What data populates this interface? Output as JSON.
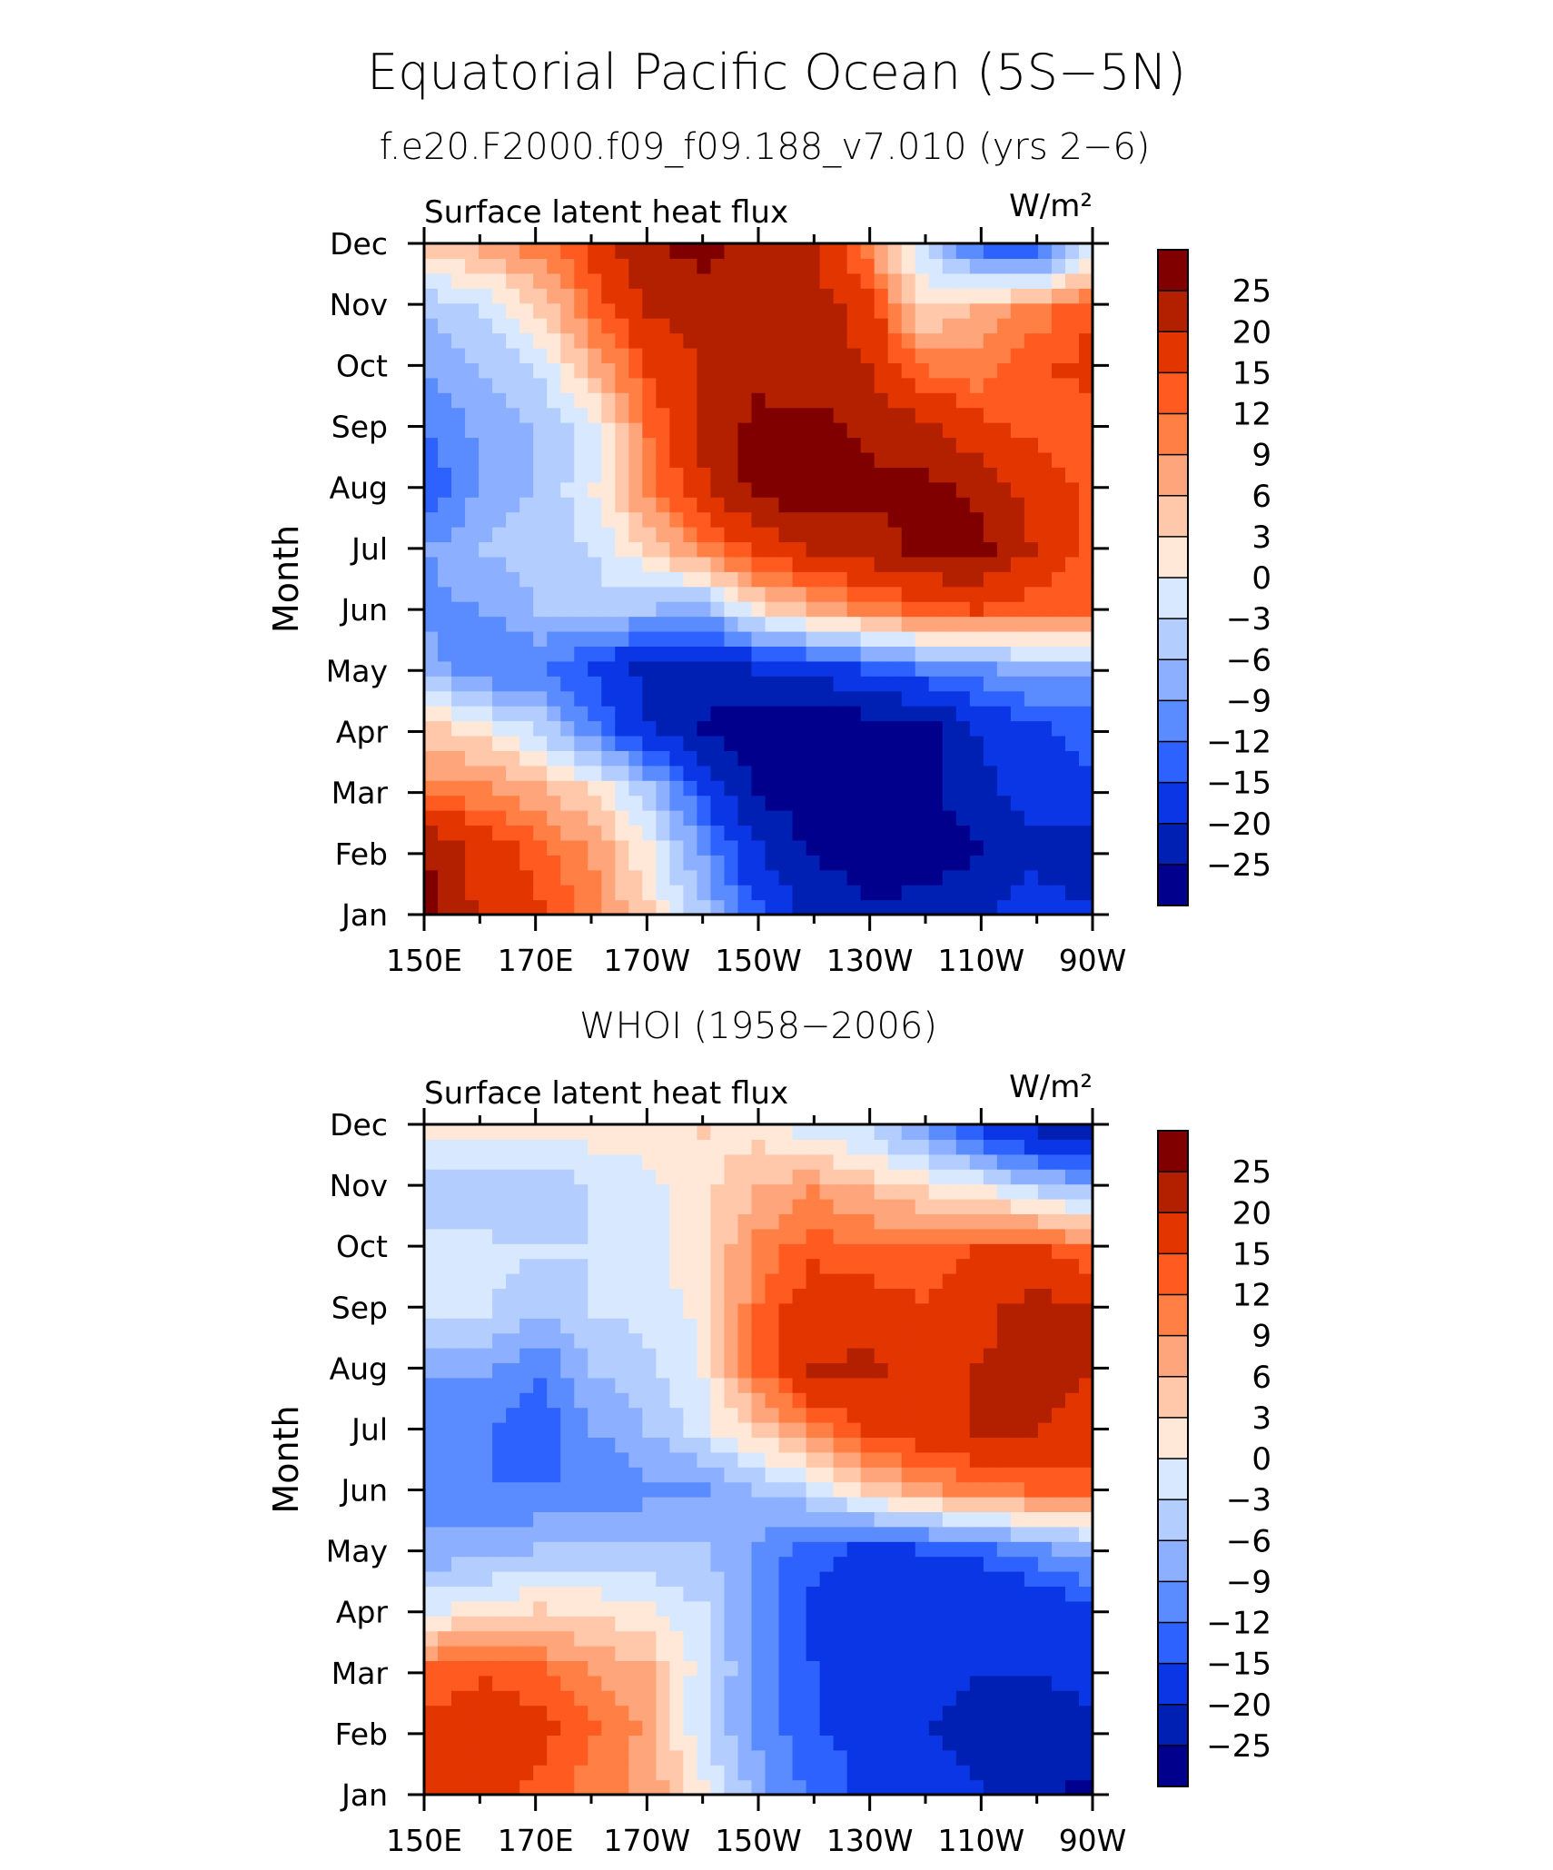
{
  "title": "Equatorial Pacific Ocean (5S−5N)",
  "subtitle": "f.e20.F2000.f09_f09.188_v7.010 (yrs 2−6)",
  "colorbar": {
    "labels": [
      "25",
      "20",
      "15",
      "12",
      "9",
      "6",
      "3",
      "0",
      "−3",
      "−6",
      "−9",
      "−12",
      "−15",
      "−20",
      "−25"
    ],
    "colors": [
      "#800000",
      "#b22000",
      "#e23500",
      "#ff5a1f",
      "#ff7f45",
      "#ffa57b",
      "#ffc8aa",
      "#ffe8d8",
      "#d8e8ff",
      "#b4cdff",
      "#8cb0ff",
      "#5a8cff",
      "#2e62ff",
      "#0a36e6",
      "#0020b4",
      "#00008c"
    ]
  },
  "chart_data": [
    {
      "type": "heatmap",
      "title": "",
      "left_label": "Surface latent heat flux",
      "units_label": "W/m²",
      "ylabel": "Month",
      "xlabel": "",
      "x_ticks": [
        "150E",
        "170E",
        "170W",
        "150W",
        "130W",
        "110W",
        "90W"
      ],
      "y_ticks": [
        "Jan",
        "Feb",
        "Mar",
        "Apr",
        "May",
        "Jun",
        "Jul",
        "Aug",
        "Sep",
        "Oct",
        "Nov",
        "Dec"
      ],
      "x_range": [
        "150E",
        "90W"
      ],
      "y_range": [
        "Jan",
        "Dec"
      ],
      "grid_x": [
        "150E",
        "160E",
        "170E",
        "180",
        "170W",
        "160W",
        "150W",
        "140W",
        "130W",
        "120W",
        "110W",
        "100W",
        "90W"
      ],
      "values": [
        [
          26,
          18,
          15,
          10,
          3,
          -6,
          -15,
          -22,
          -25,
          -24,
          -22,
          -18,
          -20
        ],
        [
          24,
          18,
          13,
          8,
          0,
          -10,
          -20,
          -26,
          -27,
          -27,
          -26,
          -22,
          -22
        ],
        [
          10,
          9,
          6,
          2,
          -6,
          -16,
          -26,
          -28,
          -28,
          -27,
          -22,
          -18,
          -16
        ],
        [
          4,
          1,
          -4,
          -12,
          -20,
          -26,
          -29,
          -29,
          -28,
          -27,
          -20,
          -16,
          -14
        ],
        [
          -8,
          -12,
          -12,
          -16,
          -22,
          -22,
          -20,
          -18,
          -15,
          -12,
          -10,
          -8,
          -8
        ],
        [
          -10,
          -9,
          -6,
          -4,
          -6,
          -8,
          2,
          6,
          10,
          13,
          15,
          13,
          12
        ],
        [
          -9,
          -6,
          -4,
          -3,
          3,
          10,
          16,
          20,
          23,
          26,
          27,
          20,
          14
        ],
        [
          -14,
          -8,
          -6,
          0,
          10,
          18,
          27,
          28,
          26,
          26,
          24,
          18,
          14
        ],
        [
          -12,
          -8,
          -6,
          -2,
          12,
          22,
          27,
          27,
          24,
          22,
          17,
          14,
          12
        ],
        [
          -9,
          -6,
          -3,
          6,
          15,
          20,
          23,
          22,
          20,
          12,
          10,
          14,
          16
        ],
        [
          -6,
          -3,
          3,
          12,
          20,
          22,
          22,
          22,
          18,
          3,
          6,
          10,
          14
        ],
        [
          4,
          6,
          10,
          16,
          24,
          26,
          22,
          20,
          10,
          -3,
          -12,
          -15,
          -3
        ]
      ]
    },
    {
      "type": "heatmap",
      "title": "WHOI (1958−2006)",
      "left_label": "Surface latent heat flux",
      "units_label": "W/m²",
      "ylabel": "Month",
      "xlabel": "",
      "x_ticks": [
        "150E",
        "170E",
        "170W",
        "150W",
        "130W",
        "110W",
        "90W"
      ],
      "y_ticks": [
        "Jan",
        "Feb",
        "Mar",
        "Apr",
        "May",
        "Jun",
        "Jul",
        "Aug",
        "Sep",
        "Oct",
        "Nov",
        "Dec"
      ],
      "x_range": [
        "150E",
        "90W"
      ],
      "y_range": [
        "Jan",
        "Dec"
      ],
      "grid_x": [
        "150E",
        "160E",
        "170E",
        "180",
        "170W",
        "160W",
        "150W",
        "140W",
        "130W",
        "120W",
        "110W",
        "100W",
        "90W"
      ],
      "values": [
        [
          15,
          16,
          14,
          10,
          8,
          0,
          -8,
          -13,
          -16,
          -18,
          -20,
          -24,
          -26
        ],
        [
          16,
          18,
          16,
          12,
          8,
          -3,
          -10,
          -15,
          -16,
          -20,
          -22,
          -24,
          -22
        ],
        [
          12,
          14,
          12,
          8,
          6,
          -2,
          -10,
          -15,
          -18,
          -18,
          -20,
          -20,
          -18
        ],
        [
          -1,
          1,
          3,
          2,
          0,
          -3,
          -10,
          -16,
          -18,
          -20,
          -20,
          -20,
          -16
        ],
        [
          -8,
          -8,
          -6,
          -6,
          -6,
          -6,
          -10,
          -14,
          -16,
          -15,
          -14,
          -10,
          -8
        ],
        [
          -12,
          -12,
          -12,
          -12,
          -10,
          -10,
          -6,
          -3,
          3,
          8,
          10,
          12,
          13
        ],
        [
          -12,
          -12,
          -14,
          -9,
          -6,
          -1,
          4,
          10,
          16,
          18,
          20,
          20,
          18
        ],
        [
          -9,
          -9,
          -12,
          -6,
          -4,
          0,
          12,
          20,
          21,
          18,
          20,
          22,
          20
        ],
        [
          -3,
          -3,
          -6,
          -3,
          -2,
          1,
          12,
          18,
          18,
          15,
          18,
          22,
          21
        ],
        [
          -2,
          -2,
          -3,
          -3,
          -1,
          2,
          10,
          14,
          12,
          13,
          15,
          16,
          12
        ],
        [
          -6,
          -6,
          -6,
          -3,
          -1,
          2,
          6,
          9,
          6,
          3,
          1,
          -3,
          -6
        ],
        [
          1,
          1,
          1,
          1,
          1,
          3,
          2,
          -1,
          -3,
          -9,
          -15,
          -20,
          -24
        ]
      ]
    }
  ]
}
